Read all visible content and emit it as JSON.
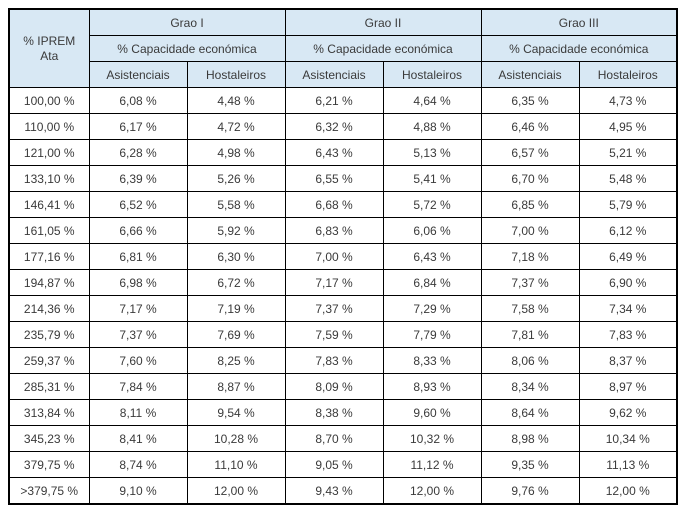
{
  "table": {
    "corner_header": "% IPREM\nAta",
    "groups": [
      {
        "label": "Grao I",
        "sublabel": "% Capacidade económica"
      },
      {
        "label": "Grao II",
        "sublabel": "% Capacidade económica"
      },
      {
        "label": "Grao III",
        "sublabel": "% Capacidade económica"
      }
    ],
    "col_headers": [
      "Asistenciais",
      "Hostaleiros"
    ],
    "rows": [
      {
        "iprem": "100,00 %",
        "values": [
          "6,08 %",
          "4,48 %",
          "6,21 %",
          "4,64 %",
          "6,35 %",
          "4,73 %"
        ]
      },
      {
        "iprem": "110,00 %",
        "values": [
          "6,17 %",
          "4,72 %",
          "6,32 %",
          "4,88 %",
          "6,46 %",
          "4,95 %"
        ]
      },
      {
        "iprem": "121,00 %",
        "values": [
          "6,28 %",
          "4,98 %",
          "6,43 %",
          "5,13 %",
          "6,57 %",
          "5,21 %"
        ]
      },
      {
        "iprem": "133,10 %",
        "values": [
          "6,39 %",
          "5,26 %",
          "6,55 %",
          "5,41 %",
          "6,70 %",
          "5,48 %"
        ]
      },
      {
        "iprem": "146,41 %",
        "values": [
          "6,52 %",
          "5,58 %",
          "6,68 %",
          "5,72 %",
          "6,85 %",
          "5,79 %"
        ]
      },
      {
        "iprem": "161,05 %",
        "values": [
          "6,66 %",
          "5,92 %",
          "6,83 %",
          "6,06 %",
          "7,00 %",
          "6,12 %"
        ]
      },
      {
        "iprem": "177,16 %",
        "values": [
          "6,81 %",
          "6,30 %",
          "7,00 %",
          "6,43 %",
          "7,18 %",
          "6,49 %"
        ]
      },
      {
        "iprem": "194,87 %",
        "values": [
          "6,98 %",
          "6,72 %",
          "7,17 %",
          "6,84 %",
          "7,37 %",
          "6,90 %"
        ]
      },
      {
        "iprem": "214,36 %",
        "values": [
          "7,17 %",
          "7,19 %",
          "7,37 %",
          "7,29 %",
          "7,58 %",
          "7,34 %"
        ]
      },
      {
        "iprem": "235,79 %",
        "values": [
          "7,37 %",
          "7,69 %",
          "7,59 %",
          "7,79 %",
          "7,81 %",
          "7,83 %"
        ]
      },
      {
        "iprem": "259,37 %",
        "values": [
          "7,60 %",
          "8,25 %",
          "7,83 %",
          "8,33 %",
          "8,06 %",
          "8,37 %"
        ]
      },
      {
        "iprem": "285,31 %",
        "values": [
          "7,84 %",
          "8,87 %",
          "8,09 %",
          "8,93 %",
          "8,34 %",
          "8,97 %"
        ]
      },
      {
        "iprem": "313,84 %",
        "values": [
          "8,11 %",
          "9,54 %",
          "8,38 %",
          "9,60 %",
          "8,64 %",
          "9,62 %"
        ]
      },
      {
        "iprem": "345,23 %",
        "values": [
          "8,41 %",
          "10,28 %",
          "8,70 %",
          "10,32 %",
          "8,98 %",
          "10,34 %"
        ]
      },
      {
        "iprem": "379,75 %",
        "values": [
          "8,74 %",
          "11,10 %",
          "9,05 %",
          "11,12 %",
          "9,35 %",
          "11,13 %"
        ]
      },
      {
        "iprem": ">379,75 %",
        "values": [
          "9,10 %",
          "12,00 %",
          "9,43 %",
          "12,00 %",
          "9,76 %",
          "12,00 %"
        ]
      }
    ]
  },
  "colors": {
    "header_bg": "#d8e8f4",
    "border": "#000000",
    "text": "#3a3a3a",
    "background": "#ffffff"
  }
}
